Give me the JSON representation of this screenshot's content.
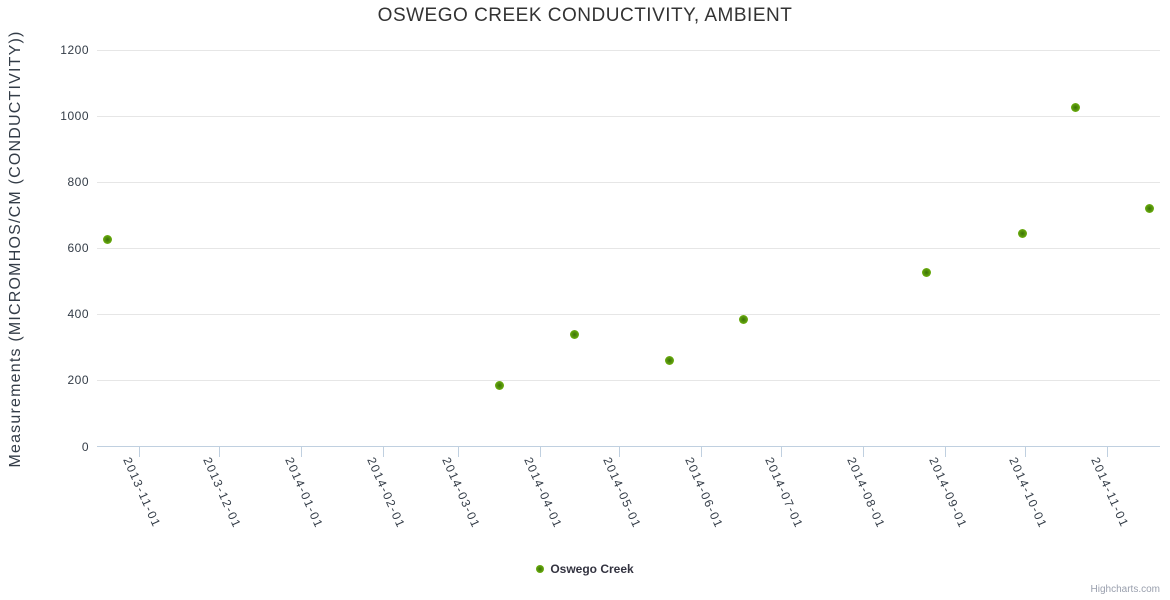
{
  "credits": "Highcharts.com",
  "chart_data": {
    "type": "scatter",
    "title": "OSWEGO CREEK CONDUCTIVITY, AMBIENT",
    "xlabel": "",
    "ylabel": "Measurements (MICROMHOS/CM (CONDUCTIVITY))",
    "ylim": [
      0,
      1200
    ],
    "yticks": [
      0,
      200,
      400,
      600,
      800,
      1000,
      1200
    ],
    "xlim": [
      "2013-10-16",
      "2014-11-21"
    ],
    "xticks": [
      "2013-11-01",
      "2013-12-01",
      "2014-01-01",
      "2014-02-01",
      "2014-03-01",
      "2014-04-01",
      "2014-05-01",
      "2014-06-01",
      "2014-07-01",
      "2014-08-01",
      "2014-09-01",
      "2014-10-01",
      "2014-11-01"
    ],
    "grid": "horizontal",
    "legend_position": "bottom",
    "series": [
      {
        "name": "Oswego Creek",
        "color": "#54930a",
        "points": [
          {
            "date": "2013-10-20",
            "value": 625
          },
          {
            "date": "2014-03-17",
            "value": 185
          },
          {
            "date": "2014-04-14",
            "value": 340
          },
          {
            "date": "2014-05-20",
            "value": 260
          },
          {
            "date": "2014-06-17",
            "value": 385
          },
          {
            "date": "2014-08-25",
            "value": 525
          },
          {
            "date": "2014-09-30",
            "value": 645
          },
          {
            "date": "2014-10-20",
            "value": 1025
          },
          {
            "date": "2014-11-17",
            "value": 720
          }
        ]
      }
    ]
  }
}
